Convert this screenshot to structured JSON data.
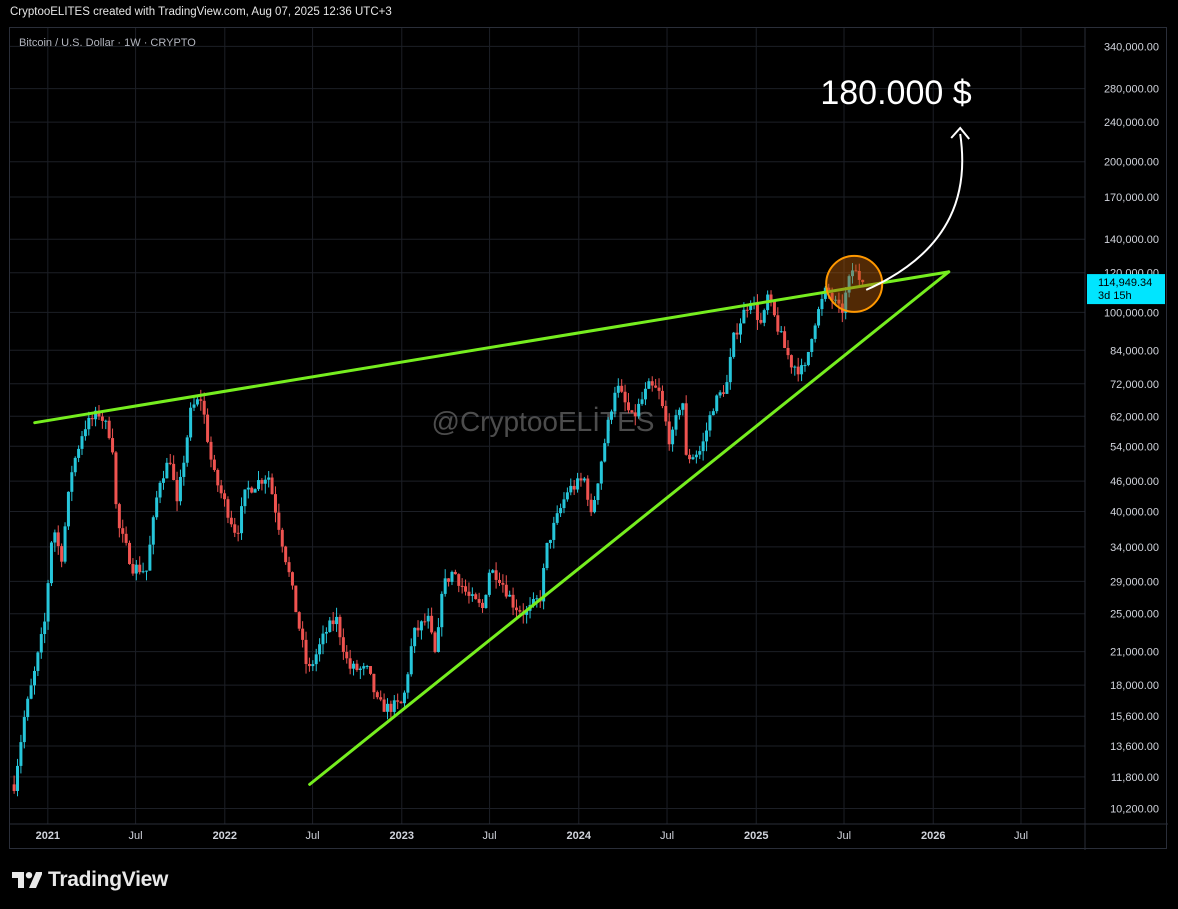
{
  "header": {
    "attribution": "CryptooELITES created with TradingView.com, Aug 07, 2025 12:36 UTC+3"
  },
  "chart": {
    "symbol_line": "Bitcoin / U.S. Dollar · 1W · CRYPTO",
    "watermark": "@CryptooELİTES",
    "annotation_target": "180.000 $",
    "price_tag_value": "114,949.34",
    "price_tag_countdown": "3d 15h"
  },
  "footer": {
    "brand": "TradingView"
  },
  "colors": {
    "background": "#000000",
    "up_candle": "#26c6da",
    "down_candle": "#ef5350",
    "trendline": "#76ee1f",
    "circle_fill": "#b35a0a",
    "circle_stroke": "#ff9800",
    "price_tag": "#00e5ff",
    "arrow": "#ffffff"
  },
  "chart_data": {
    "type": "candlestick",
    "title": "Bitcoin / U.S. Dollar · 1W · CRYPTO",
    "y_scale": "log",
    "ylim": [
      9500,
      370000
    ],
    "y_ticks": [
      340000,
      280000,
      240000,
      200000,
      170000,
      140000,
      120000,
      100000,
      84000,
      72000,
      62000,
      54000,
      46000,
      40000,
      34000,
      29000,
      25000,
      21000,
      18000,
      15600,
      13600,
      11800,
      10200
    ],
    "y_tick_labels": [
      "340,000.00",
      "280,000.00",
      "240,000.00",
      "200,000.00",
      "170,000.00",
      "140,000.00",
      "120,000.00",
      "100,000.00",
      "84,000.00",
      "72,000.00",
      "62,000.00",
      "54,000.00",
      "46,000.00",
      "40,000.00",
      "34,000.00",
      "29,000.00",
      "25,000.00",
      "21,000.00",
      "18,000.00",
      "15,600.00",
      "13,600.00",
      "11,800.00",
      "10,200.00"
    ],
    "x_ticks": [
      {
        "label": "2021",
        "date": "2021-01-01"
      },
      {
        "label": "Jul",
        "date": "2021-07-01"
      },
      {
        "label": "2022",
        "date": "2022-01-01"
      },
      {
        "label": "Jul",
        "date": "2022-07-01"
      },
      {
        "label": "2023",
        "date": "2023-01-01"
      },
      {
        "label": "Jul",
        "date": "2023-07-01"
      },
      {
        "label": "2024",
        "date": "2024-01-01"
      },
      {
        "label": "Jul",
        "date": "2024-07-01"
      },
      {
        "label": "2025",
        "date": "2025-01-01"
      },
      {
        "label": "Jul",
        "date": "2025-07-01"
      },
      {
        "label": "2026",
        "date": "2026-01-01"
      },
      {
        "label": "Jul",
        "date": "2026-07-01"
      }
    ],
    "x_range": [
      "2020-10-15",
      "2026-11-10"
    ],
    "series_points": [
      [
        "2020-10-20",
        11400
      ],
      [
        "2020-11-10",
        15500
      ],
      [
        "2020-12-01",
        19000
      ],
      [
        "2020-12-22",
        24000
      ],
      [
        "2021-01-08",
        38000
      ],
      [
        "2021-01-25",
        32000
      ],
      [
        "2021-02-15",
        48000
      ],
      [
        "2021-03-13",
        59000
      ],
      [
        "2021-04-14",
        63000
      ],
      [
        "2021-05-10",
        56000
      ],
      [
        "2021-05-20",
        38000
      ],
      [
        "2021-06-22",
        31000
      ],
      [
        "2021-07-20",
        30500
      ],
      [
        "2021-08-15",
        46000
      ],
      [
        "2021-09-07",
        51000
      ],
      [
        "2021-09-21",
        41000
      ],
      [
        "2021-10-20",
        64000
      ],
      [
        "2021-11-10",
        67500
      ],
      [
        "2021-12-04",
        48000
      ],
      [
        "2022-01-22",
        36000
      ],
      [
        "2022-02-10",
        44000
      ],
      [
        "2022-03-28",
        47500
      ],
      [
        "2022-05-10",
        30000
      ],
      [
        "2022-06-18",
        19000
      ],
      [
        "2022-07-25",
        23000
      ],
      [
        "2022-08-15",
        24500
      ],
      [
        "2022-09-10",
        19500
      ],
      [
        "2022-10-20",
        19200
      ],
      [
        "2022-11-09",
        16500
      ],
      [
        "2022-11-28",
        16200
      ],
      [
        "2022-12-31",
        16500
      ],
      [
        "2023-01-21",
        22700
      ],
      [
        "2023-02-20",
        24500
      ],
      [
        "2023-03-10",
        20000
      ],
      [
        "2023-03-20",
        28000
      ],
      [
        "2023-04-14",
        30500
      ],
      [
        "2023-05-15",
        27000
      ],
      [
        "2023-06-15",
        25500
      ],
      [
        "2023-06-25",
        30500
      ],
      [
        "2023-07-15",
        30000
      ],
      [
        "2023-08-17",
        26000
      ],
      [
        "2023-09-11",
        25000
      ],
      [
        "2023-10-10",
        27000
      ],
      [
        "2023-10-25",
        34500
      ],
      [
        "2023-12-05",
        44000
      ],
      [
        "2024-01-11",
        46500
      ],
      [
        "2024-01-23",
        39000
      ],
      [
        "2024-02-15",
        52000
      ],
      [
        "2024-03-14",
        72000
      ],
      [
        "2024-04-17",
        61000
      ],
      [
        "2024-05-20",
        71000
      ],
      [
        "2024-06-10",
        69500
      ],
      [
        "2024-07-05",
        54500
      ],
      [
        "2024-07-29",
        69000
      ],
      [
        "2024-08-05",
        51000
      ],
      [
        "2024-09-06",
        53000
      ],
      [
        "2024-09-30",
        65000
      ],
      [
        "2024-10-29",
        72000
      ],
      [
        "2024-11-13",
        90000
      ],
      [
        "2024-12-05",
        101000
      ],
      [
        "2024-12-17",
        107000
      ],
      [
        "2025-01-10",
        93000
      ],
      [
        "2025-01-20",
        108000
      ],
      [
        "2025-02-25",
        85000
      ],
      [
        "2025-03-11",
        79000
      ],
      [
        "2025-04-07",
        76000
      ],
      [
        "2025-04-25",
        94000
      ],
      [
        "2025-05-22",
        111000
      ],
      [
        "2025-06-22",
        99500
      ],
      [
        "2025-07-14",
        122000
      ],
      [
        "2025-08-07",
        114949
      ]
    ],
    "trendlines": [
      {
        "name": "resistance",
        "from": {
          "date": "2020-12-05",
          "value": 60200
        },
        "to": {
          "date": "2026-02-02",
          "value": 120500
        }
      },
      {
        "name": "support",
        "from": {
          "date": "2022-06-25",
          "value": 11400
        },
        "to": {
          "date": "2026-02-02",
          "value": 120500
        }
      }
    ],
    "highlight_circle": {
      "date": "2025-07-22",
      "value": 114000
    },
    "last_price": 114949.34
  }
}
